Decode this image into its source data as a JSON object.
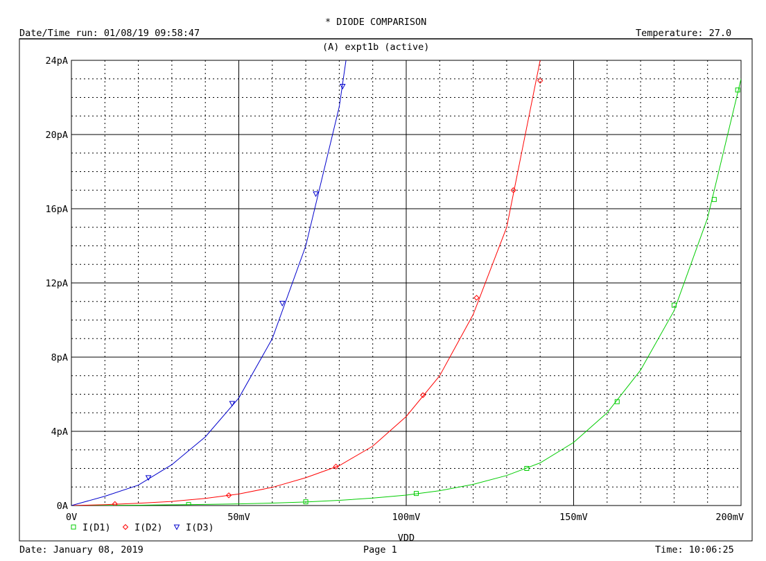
{
  "header": {
    "title": "* DIODE COMPARISON",
    "datetime_run": "Date/Time run: 01/08/19 09:58:47",
    "temperature": "Temperature: 27.0",
    "plot_title": "(A) expt1b (active)"
  },
  "footer": {
    "date": "Date: January 08, 2019",
    "page": "Page 1",
    "time": "Time: 10:06:25"
  },
  "chart_data": {
    "type": "line",
    "title": "* DIODE COMPARISON",
    "subtitle": "(A) expt1b (active)",
    "xlabel": "VDD",
    "ylabel": "",
    "xlim": [
      0,
      200
    ],
    "ylim": [
      0,
      24
    ],
    "x_unit": "mV",
    "y_unit": "pA",
    "grid": true,
    "legend_placement": "bottom-left",
    "x_ticks": [
      {
        "value": 0,
        "label": "0V"
      },
      {
        "value": 50,
        "label": "50mV"
      },
      {
        "value": 100,
        "label": "100mV"
      },
      {
        "value": 150,
        "label": "150mV"
      },
      {
        "value": 200,
        "label": "200mV"
      }
    ],
    "y_ticks": [
      {
        "value": 0,
        "label": "0A"
      },
      {
        "value": 4,
        "label": "4pA"
      },
      {
        "value": 8,
        "label": "8pA"
      },
      {
        "value": 12,
        "label": "12pA"
      },
      {
        "value": 16,
        "label": "16pA"
      },
      {
        "value": 20,
        "label": "20pA"
      },
      {
        "value": 24,
        "label": "24pA"
      }
    ],
    "series": [
      {
        "name": "I(D1)",
        "color": "#00cc00",
        "marker": "square",
        "x": [
          0,
          10,
          20,
          30,
          40,
          50,
          60,
          70,
          80,
          90,
          100,
          110,
          120,
          130,
          140,
          150,
          160,
          170,
          180,
          190,
          200
        ],
        "y": [
          0,
          0.01,
          0.02,
          0.04,
          0.06,
          0.09,
          0.13,
          0.19,
          0.28,
          0.4,
          0.56,
          0.8,
          1.14,
          1.62,
          2.3,
          3.4,
          5.0,
          7.3,
          10.5,
          15.5,
          23.0
        ],
        "markers_x": [
          35,
          70,
          103,
          136,
          163,
          180,
          192,
          199
        ],
        "markers_y": [
          0.05,
          0.2,
          0.65,
          2.0,
          5.6,
          10.8,
          16.5,
          22.4
        ]
      },
      {
        "name": "I(D2)",
        "color": "#ff0000",
        "marker": "diamond",
        "x": [
          0,
          10,
          20,
          30,
          40,
          50,
          60,
          70,
          80,
          90,
          100,
          110,
          120,
          130,
          140
        ],
        "y": [
          0,
          0.05,
          0.12,
          0.22,
          0.38,
          0.62,
          0.98,
          1.5,
          2.15,
          3.2,
          4.8,
          7.0,
          10.3,
          15.0,
          24.0
        ],
        "markers_x": [
          13,
          47,
          79,
          105,
          121,
          132,
          140
        ],
        "markers_y": [
          0.08,
          0.55,
          2.1,
          5.95,
          11.2,
          17.0,
          22.9
        ]
      },
      {
        "name": "I(D3)",
        "color": "#0000cc",
        "marker": "triangle",
        "x": [
          0,
          10,
          20,
          30,
          40,
          50,
          60,
          70,
          80,
          82
        ],
        "y": [
          0,
          0.5,
          1.1,
          2.2,
          3.7,
          5.8,
          9.0,
          14.0,
          21.5,
          24.0
        ],
        "markers_x": [
          23,
          48,
          63,
          73,
          81
        ],
        "markers_y": [
          1.5,
          5.5,
          10.9,
          16.8,
          22.6
        ]
      }
    ]
  }
}
